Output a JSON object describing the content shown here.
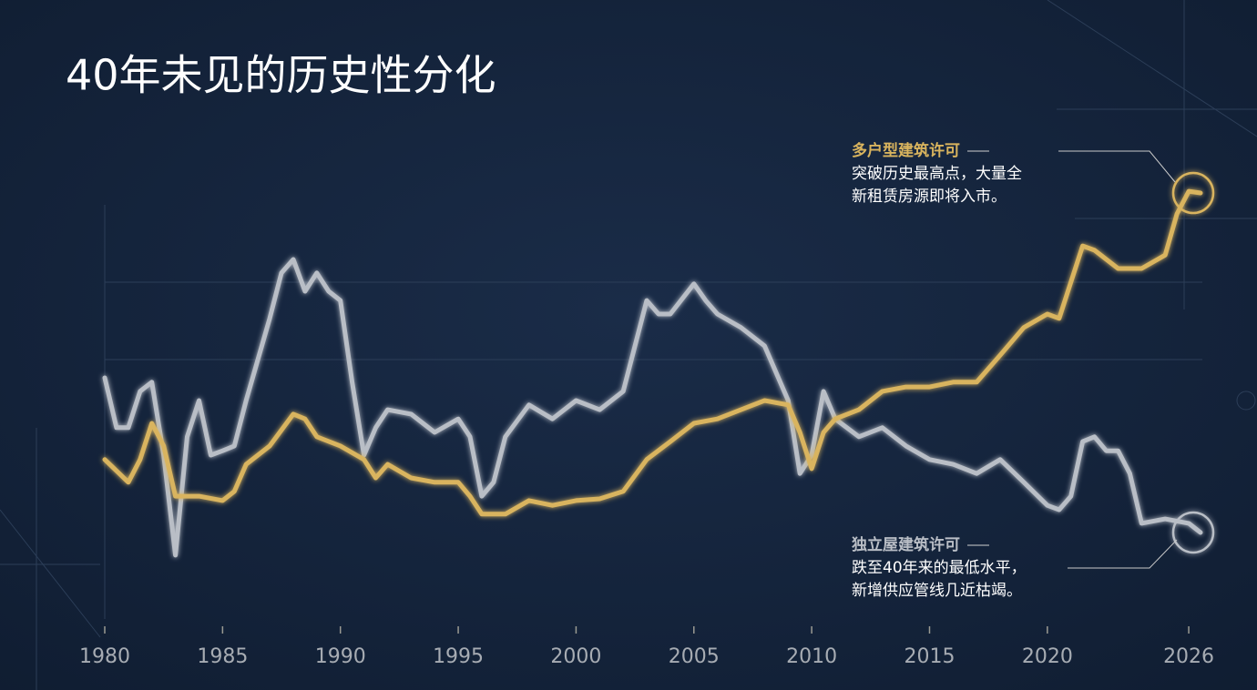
{
  "chart_data": {
    "type": "line",
    "title": "40年未见的历史性分化",
    "xlim": [
      1980,
      2026.5
    ],
    "xticks": [
      1980,
      1985,
      1990,
      1995,
      2000,
      2005,
      2010,
      2015,
      2020,
      2026
    ],
    "ylim": [
      0,
      100
    ],
    "series": [
      {
        "name": "独立屋建筑许可",
        "color": "#b9bec6",
        "x": [
          1980,
          1980.5,
          1981,
          1981.5,
          1982,
          1982.5,
          1983,
          1983.5,
          1984,
          1984.5,
          1985,
          1985.5,
          1986,
          1987,
          1987.5,
          1988,
          1988.5,
          1989,
          1989.5,
          1990,
          1990.5,
          1991,
          1991.5,
          1992,
          1993,
          1994,
          1995,
          1995.5,
          1996,
          1996.5,
          1997,
          1998,
          1999,
          2000,
          2001,
          2002,
          2003,
          2003.5,
          2004,
          2005,
          2005.5,
          2006,
          2007,
          2008,
          2009,
          2009.5,
          2010,
          2010.5,
          2011,
          2012,
          2013,
          2014,
          2015,
          2016,
          2017,
          2018,
          2019,
          2020,
          2020.5,
          2021,
          2021.5,
          2022,
          2022.5,
          2023,
          2023.5,
          2024,
          2025,
          2026,
          2026.5
        ],
        "values": [
          55.2,
          43.8,
          43.8,
          52.1,
          54.2,
          37.5,
          14.6,
          41.7,
          50,
          37.5,
          38.5,
          39.6,
          50,
          68.8,
          79.2,
          82.3,
          75,
          79.2,
          75,
          72.9,
          54.2,
          37.5,
          43.8,
          47.9,
          46.9,
          42.7,
          45.8,
          41.7,
          28.1,
          31.3,
          41.7,
          49,
          45.8,
          50,
          47.9,
          52.1,
          72.9,
          69.8,
          69.8,
          76.7,
          72.9,
          69.8,
          66.7,
          62.5,
          50,
          33.3,
          37.5,
          52.1,
          45.8,
          41.7,
          43.8,
          39.6,
          36.5,
          35.4,
          33.3,
          36.5,
          31.3,
          26,
          25,
          28.1,
          40.6,
          41.7,
          38.5,
          38.5,
          33.3,
          21.9,
          22.9,
          21.9,
          19.8
        ],
        "annotation": [
          "跌至40年来的最低水平，",
          "新增供应管线几近枯竭。"
        ]
      },
      {
        "name": "多户型建筑许可",
        "color": "#d9b45e",
        "x": [
          1980,
          1981,
          1981.5,
          1982,
          1982.5,
          1983,
          1984,
          1985,
          1985.5,
          1986,
          1987,
          1988,
          1988.5,
          1989,
          1990,
          1991,
          1991.5,
          1992,
          1993,
          1994,
          1995,
          1995.5,
          1996,
          1997,
          1998,
          1999,
          2000,
          2001,
          2002,
          2003,
          2004,
          2005,
          2006,
          2007,
          2008,
          2009,
          2009.5,
          2010,
          2010.5,
          2011,
          2012,
          2013,
          2014,
          2015,
          2016,
          2017,
          2018,
          2019,
          2020,
          2020.5,
          2021,
          2021.5,
          2022,
          2023,
          2024,
          2025,
          2025.5,
          2026,
          2026.5
        ],
        "values": [
          36.5,
          31.3,
          36.5,
          44.8,
          39.6,
          28.1,
          28.1,
          27.1,
          29.2,
          35.4,
          39.6,
          46.9,
          45.8,
          41.7,
          39.6,
          36.5,
          32.3,
          35.4,
          32.3,
          31.3,
          31.3,
          28.1,
          24,
          24,
          27.1,
          26,
          27.1,
          27.5,
          29.2,
          36.5,
          40.6,
          44.8,
          45.8,
          47.9,
          50,
          49,
          42.7,
          34.4,
          42.7,
          45.8,
          47.9,
          52.1,
          53.1,
          53.1,
          54.2,
          54.2,
          60.4,
          66.7,
          69.8,
          68.8,
          77.1,
          85.4,
          84.4,
          80.2,
          80.2,
          83.3,
          92.7,
          97.9,
          97.5
        ],
        "annotation": [
          "突破历史最高点，大量全",
          "新租赁房源即将入市。"
        ]
      }
    ]
  }
}
